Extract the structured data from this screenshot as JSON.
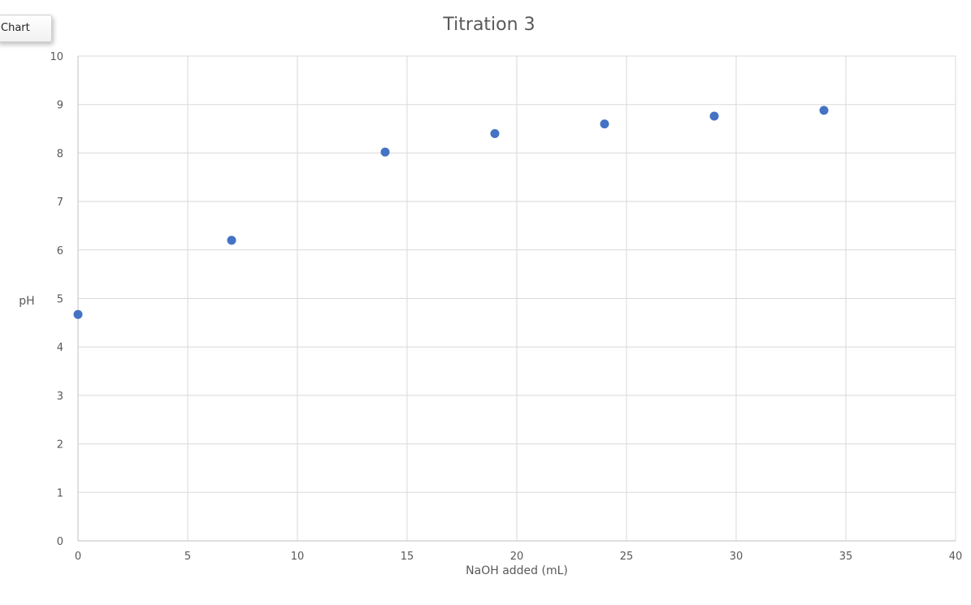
{
  "tab": {
    "label": "Chart"
  },
  "chart_data": {
    "type": "scatter",
    "title": "Titration 3",
    "xlabel": "NaOH added (mL)",
    "ylabel": "pH",
    "xlim": [
      0,
      40
    ],
    "ylim": [
      0,
      10
    ],
    "xticks": [
      0,
      5,
      10,
      15,
      20,
      25,
      30,
      35,
      40
    ],
    "yticks": [
      0,
      1,
      2,
      3,
      4,
      5,
      6,
      7,
      8,
      9,
      10
    ],
    "grid": true,
    "legend": "none",
    "marker_color": "#4472C4",
    "series": [
      {
        "x": [
          0,
          7,
          14,
          19,
          24,
          29,
          34
        ],
        "y": [
          4.67,
          6.2,
          8.02,
          8.4,
          8.6,
          8.76,
          8.88
        ]
      }
    ]
  }
}
